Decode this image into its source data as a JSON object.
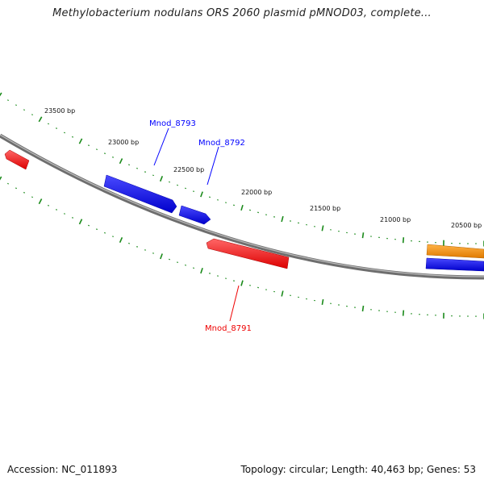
{
  "title": "Methylobacterium nodulans ORS 2060 plasmid pMNOD03, complete...",
  "footer": {
    "accession": "Accession: NC_011893",
    "topology": "Topology: circular;",
    "length": "Length: 40,463 bp;",
    "genes": "Genes: 53"
  },
  "bp_labels": [
    "23500 bp",
    "23000 bp",
    "22500 bp",
    "22000 bp",
    "21500 bp",
    "21000 bp",
    "20500 bp"
  ],
  "genes": [
    {
      "name": "Mnod_8793",
      "color": "#0000ff",
      "strand": "+"
    },
    {
      "name": "Mnod_8792",
      "color": "#0000ff",
      "strand": "+"
    },
    {
      "name": "Mnod_8791",
      "color": "#ee0000",
      "strand": "-"
    }
  ],
  "unlabeled_features": [
    {
      "color": "#ee0000",
      "strand": "-"
    },
    {
      "color": "#ff8c00",
      "strand": "+"
    },
    {
      "color": "#0000ff",
      "strand": "+"
    }
  ],
  "colors": {
    "backbone": "#888888",
    "ticks": "#1a8a1a",
    "forward_gene": "#0000ff",
    "reverse_gene": "#ee0000",
    "other_gene": "#ff8c00"
  }
}
